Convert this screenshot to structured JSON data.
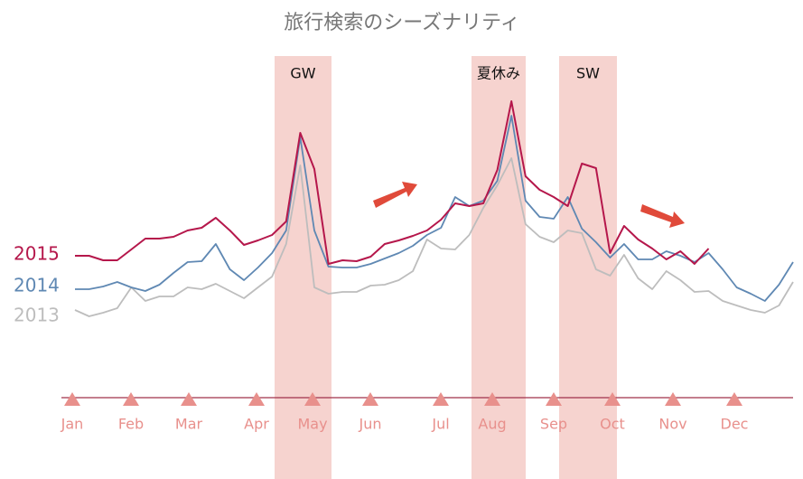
{
  "chart_data": {
    "type": "line",
    "title": "旅行検索のシーズナリティ",
    "months": [
      "Jan",
      "Feb",
      "Mar",
      "Apr",
      "May",
      "Jun",
      "Jul",
      "Aug",
      "Sep",
      "Oct",
      "Nov",
      "Dec"
    ],
    "periods": [
      "GW",
      "夏休み",
      "SW"
    ],
    "ylim": [
      0,
      340
    ],
    "series": [
      {
        "name": "2015",
        "color": "#b5174b",
        "values": [
          157,
          157,
          152,
          152,
          164,
          176,
          176,
          178,
          185,
          188,
          199,
          185,
          169,
          174,
          180,
          195,
          293,
          253,
          148,
          152,
          151,
          156,
          170,
          174,
          179,
          185,
          197,
          215,
          212,
          215,
          252,
          328,
          245,
          230,
          222,
          212,
          259,
          254,
          160,
          190,
          175,
          165,
          153,
          162,
          148,
          165,
          null,
          null,
          null,
          null,
          null,
          null
        ]
      },
      {
        "name": "2014",
        "color": "#5f88b3",
        "values": [
          120,
          120,
          123,
          128,
          122,
          118,
          125,
          138,
          150,
          151,
          170,
          142,
          130,
          144,
          160,
          185,
          288,
          185,
          145,
          144,
          144,
          148,
          154,
          160,
          168,
          180,
          188,
          222,
          212,
          218,
          240,
          312,
          218,
          200,
          198,
          222,
          187,
          172,
          155,
          170,
          153,
          153,
          162,
          157,
          150,
          160,
          142,
          122,
          115,
          107,
          125,
          150
        ]
      },
      {
        "name": "2013",
        "color": "#bdbdbd",
        "values": [
          97,
          90,
          94,
          99,
          122,
          107,
          112,
          112,
          122,
          120,
          126,
          118,
          110,
          122,
          134,
          170,
          257,
          122,
          115,
          117,
          117,
          124,
          125,
          130,
          140,
          175,
          165,
          164,
          180,
          210,
          235,
          265,
          192,
          178,
          172,
          185,
          182,
          142,
          135,
          158,
          132,
          120,
          140,
          130,
          117,
          118,
          107,
          102,
          97,
          94,
          102,
          128
        ]
      }
    ]
  }
}
